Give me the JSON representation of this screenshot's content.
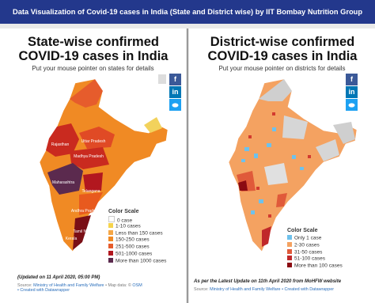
{
  "header": {
    "title": "Data Visualization of Covid-19 cases in India (State and District wise) by IIT Bombay Nutrition Group"
  },
  "left_panel": {
    "title": "State-wise confirmed COVID-19 cases in India",
    "subtitle": "Put your mouse pointer on states for details",
    "share": {
      "facebook": "f",
      "linkedin": "in"
    },
    "map_labels": [
      "Rajasthan",
      "Uttar Pradesh",
      "Madhya Pradesh",
      "Maharashtra",
      "Telangana",
      "Andhra Pradesh",
      "Tamil Nadu",
      "Kerala"
    ],
    "legend": {
      "title": "Color Scale",
      "items": [
        "0 case",
        "1-10 cases",
        "Less than 150 cases",
        "150-250 cases",
        "251-500 cases",
        "501-1000 cases",
        "More than 1000 cases"
      ]
    },
    "footer": {
      "updated": "(Updated on 11 April 2020, 05:00 PM)",
      "source": "Source:",
      "source_link": "Ministry of Health and Family Welfare",
      "map_data": "• Map data: ©",
      "osm": "OSM",
      "created": "• Created with Datawrapper"
    }
  },
  "right_panel": {
    "title": "District-wise confirmed COVID-19 cases in India",
    "subtitle": "Put your mouse pointer on districts for details",
    "share": {
      "facebook": "f",
      "linkedin": "in"
    },
    "legend": {
      "title": "Color Scale",
      "items": [
        "Only 1 case",
        "2-30 cases",
        "31-50 cases",
        "51-100 cases",
        "More than 100 cases"
      ]
    },
    "footer": {
      "note": "As per the Latest Update on 11th April 2020 from MoHFW website",
      "source": "Source:",
      "source_link": "Ministry of Health and Family Welfare",
      "created": "• Created with Datawrapper"
    }
  }
}
